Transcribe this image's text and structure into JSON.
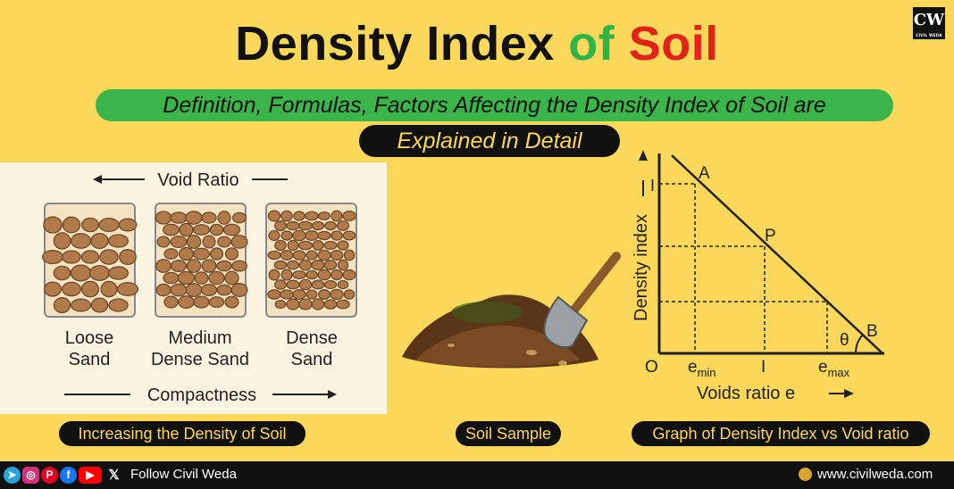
{
  "header": {
    "title_part1": "Density Index ",
    "title_part2": "of ",
    "title_part3": "Soil",
    "subtitle_line1": "Definition, Formulas, Factors Affecting the Density Index of Soil are",
    "subtitle_line2": "Explained in Detail",
    "logo_text": "CW",
    "logo_subtext": "CIVIL WEDA"
  },
  "sand_panel": {
    "top_label": "Void Ratio",
    "bottom_label": "Compactness",
    "jars": [
      {
        "line1": "Loose",
        "line2": "Sand"
      },
      {
        "line1": "Medium",
        "line2": "Dense Sand"
      },
      {
        "line1": "Dense",
        "line2": "Sand"
      }
    ],
    "caption": "Increasing the Density of Soil"
  },
  "soil_sample": {
    "caption": "Soil Sample"
  },
  "graph": {
    "ylabel": "Density index",
    "xlabel": "Voids ratio e",
    "origin": "O",
    "points": {
      "A": "A",
      "P": "P",
      "B": "B"
    },
    "theta": "θ",
    "y_tick": "I",
    "x_tick_min": "e",
    "x_tick_min_sub": "min",
    "x_tick_mid": "I",
    "x_tick_max": "e",
    "x_tick_max_sub": "max",
    "caption": "Graph of Density Index vs Void ratio"
  },
  "footer": {
    "follow_text": "Follow Civil Weda",
    "website": "www.civilweda.com",
    "social_icons": [
      "telegram-icon",
      "instagram-icon",
      "pinterest-icon",
      "facebook-icon",
      "youtube-icon",
      "x-icon"
    ]
  },
  "colors": {
    "background": "#fbd75a",
    "green": "#3bb54a",
    "red": "#e2231a",
    "black": "#111111",
    "grain": "#b07a4a"
  }
}
